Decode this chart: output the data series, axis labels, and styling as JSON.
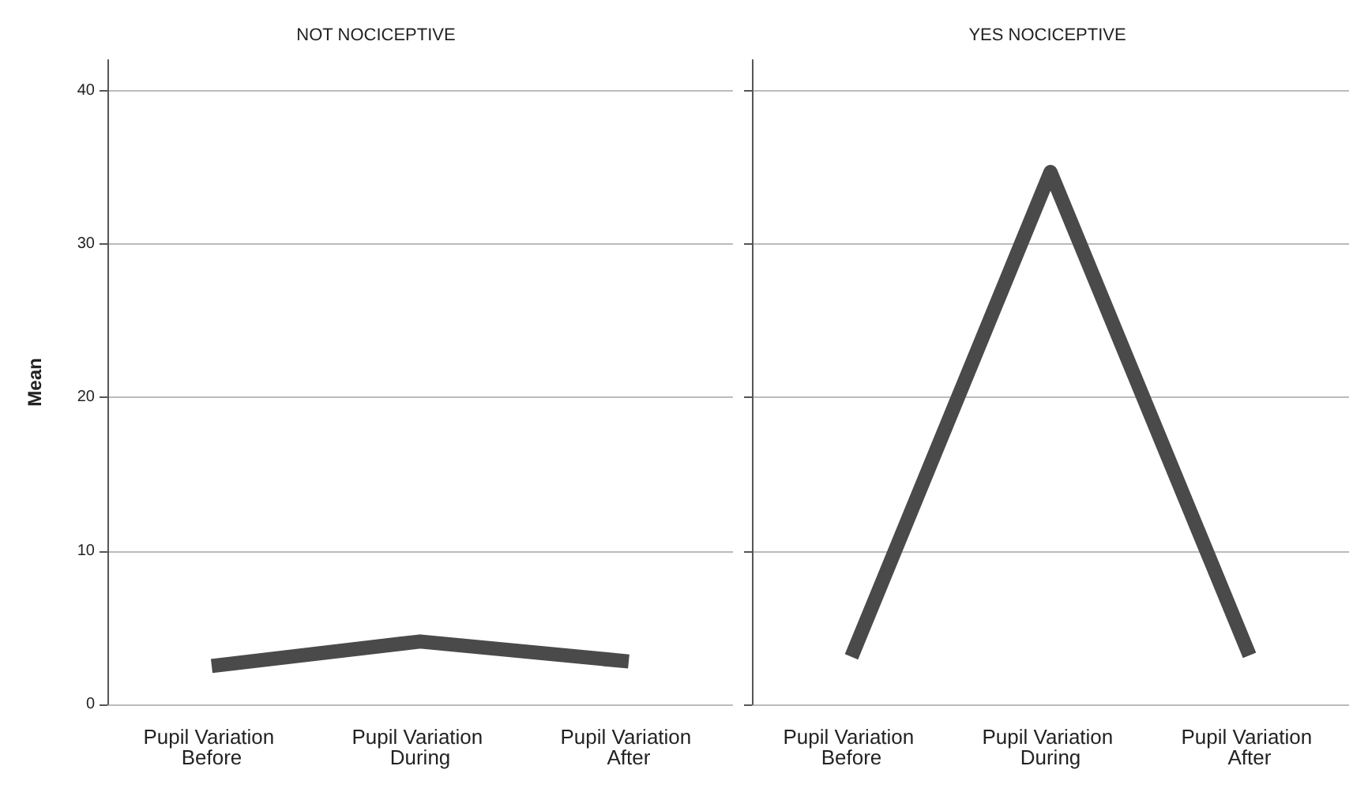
{
  "chart_data": [
    {
      "type": "line",
      "title": "NOT NOCICEPTIVE",
      "ylabel": "Mean",
      "categories": [
        "Pupil Variation Before",
        "Pupil Variation During",
        "Pupil Variation After"
      ],
      "values": [
        2.5,
        4.1,
        2.8
      ],
      "color": "#4a4a4a",
      "ylim": [
        0,
        42
      ],
      "yticks": [
        0,
        10,
        20,
        30,
        40
      ],
      "grid": "y",
      "marker": "none"
    },
    {
      "type": "line",
      "title": "YES NOCICEPTIVE",
      "categories": [
        "Pupil Variation Before",
        "Pupil Variation During",
        "Pupil Variation After"
      ],
      "values": [
        3.1,
        34.7,
        3.2
      ],
      "color": "#4a4a4a",
      "ylim": [
        0,
        42
      ],
      "yticks": [
        0,
        10,
        20,
        30,
        40
      ],
      "grid": "y",
      "marker": "none",
      "tick_labels": "x"
    }
  ]
}
